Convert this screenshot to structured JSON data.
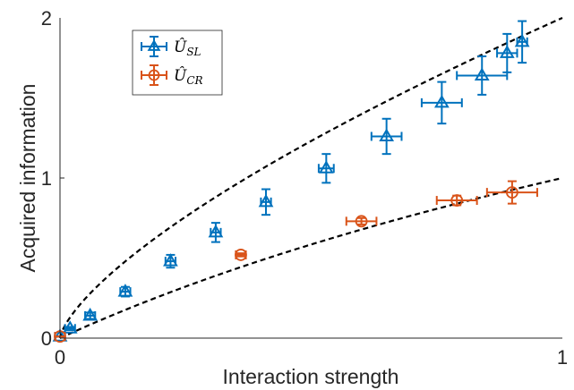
{
  "chart_data": {
    "type": "scatter",
    "title": "",
    "xlabel": "Interaction strength",
    "ylabel": "Acquired information",
    "xlim": [
      0,
      1
    ],
    "ylim": [
      0,
      2
    ],
    "x_ticks": [
      "0",
      "1"
    ],
    "y_ticks": [
      "0",
      "1",
      "2"
    ],
    "grid": false,
    "legend_position": "top-left",
    "series": [
      {
        "name": "Û_SL",
        "name_main": "Û",
        "name_sub": "SL",
        "color": "#0072BD",
        "marker": "triangle",
        "points": [
          {
            "x": 0.0,
            "y": 0.01,
            "yerr": 0.0,
            "xerr": 0.01
          },
          {
            "x": 0.02,
            "y": 0.06,
            "yerr": 0.01,
            "xerr": 0.01
          },
          {
            "x": 0.06,
            "y": 0.14,
            "yerr": 0.02,
            "xerr": 0.01
          },
          {
            "x": 0.13,
            "y": 0.29,
            "yerr": 0.03,
            "xerr": 0.01
          },
          {
            "x": 0.22,
            "y": 0.48,
            "yerr": 0.04,
            "xerr": 0.01
          },
          {
            "x": 0.31,
            "y": 0.66,
            "yerr": 0.06,
            "xerr": 0.01
          },
          {
            "x": 0.41,
            "y": 0.85,
            "yerr": 0.08,
            "xerr": 0.01
          },
          {
            "x": 0.53,
            "y": 1.06,
            "yerr": 0.09,
            "xerr": 0.015
          },
          {
            "x": 0.65,
            "y": 1.26,
            "yerr": 0.11,
            "xerr": 0.03
          },
          {
            "x": 0.76,
            "y": 1.47,
            "yerr": 0.13,
            "xerr": 0.04
          },
          {
            "x": 0.84,
            "y": 1.64,
            "yerr": 0.12,
            "xerr": 0.05
          },
          {
            "x": 0.89,
            "y": 1.78,
            "yerr": 0.12,
            "xerr": 0.02
          },
          {
            "x": 0.92,
            "y": 1.85,
            "yerr": 0.13,
            "xerr": 0.01
          }
        ]
      },
      {
        "name": "Û_CR",
        "name_main": "Û",
        "name_sub": "CR",
        "color": "#D95319",
        "marker": "circle-cross",
        "points": [
          {
            "x": 0.0,
            "y": 0.01,
            "yerr": 0.0,
            "xerr": 0.01
          },
          {
            "x": 0.36,
            "y": 0.52,
            "yerr": 0.01,
            "xerr": 0.01
          },
          {
            "x": 0.6,
            "y": 0.73,
            "yerr": 0.02,
            "xerr": 0.03
          },
          {
            "x": 0.79,
            "y": 0.86,
            "yerr": 0.03,
            "xerr": 0.04
          },
          {
            "x": 0.9,
            "y": 0.91,
            "yerr": 0.07,
            "xerr": 0.05
          }
        ]
      }
    ],
    "reference_curves": [
      {
        "style": "dashed",
        "color": "#000000",
        "function": "2x^0.7 (upper)"
      },
      {
        "style": "dashed",
        "color": "#000000",
        "function": "log2(1+x) (lower)"
      }
    ]
  }
}
